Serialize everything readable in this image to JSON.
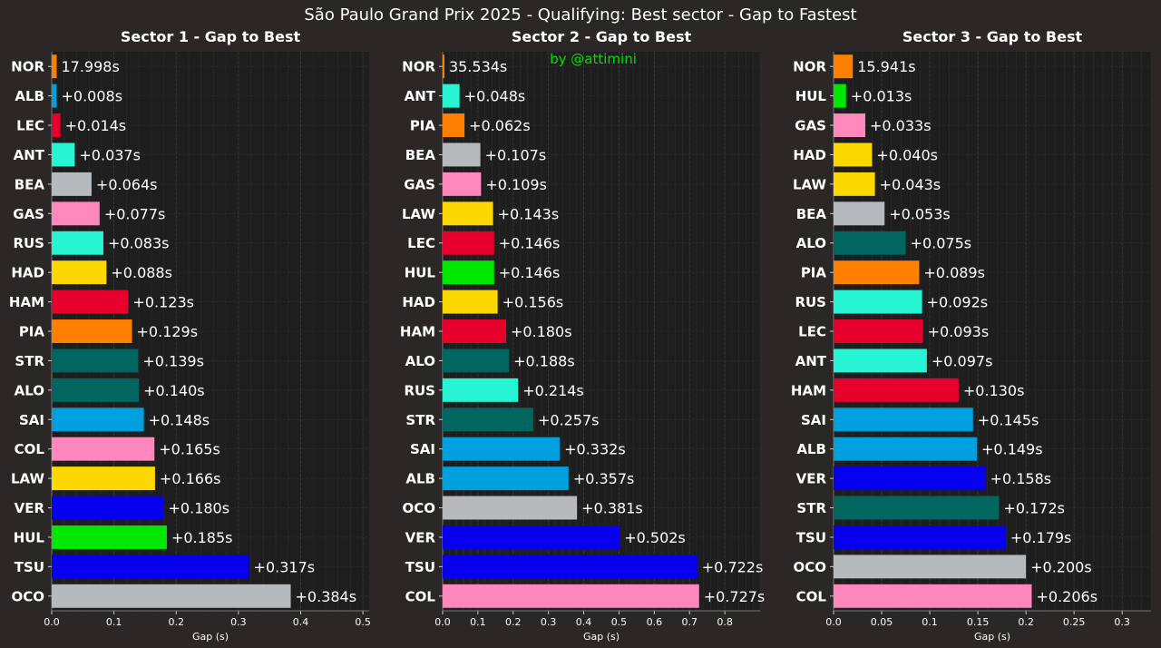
{
  "chart_data": {
    "type": "bar",
    "title": "São Paulo Grand Prix 2025 - Qualifying: Best sector - Gap to Fastest",
    "watermark": "by @attimini",
    "xlabel": "Gap (s)",
    "colors": {
      "background": "#2a2726",
      "plot_background": "#1e1e1e",
      "grid": "#3a3a3a",
      "text": "#ffffff",
      "watermark": "#00e000"
    },
    "team_colors": {
      "McLaren": "#ff8000",
      "Williams": "#00a0de",
      "Ferrari": "#e8002d",
      "Mercedes": "#27f4d2",
      "Haas": "#b6babd",
      "Alpine": "#ff87bc",
      "RacingBulls": "#fcd700",
      "AstonMartin": "#00665f",
      "RedBull": "#0600ef",
      "Sauber": "#00e701"
    },
    "panels": [
      {
        "title": "Sector 1 - Gap to Best",
        "xlim": [
          0,
          0.51
        ],
        "xticks": [
          0,
          0.1,
          0.2,
          0.3,
          0.4,
          0.5
        ],
        "tick_labels": [
          "0.0",
          "0.1",
          "0.2",
          "0.3",
          "0.4",
          "0.5"
        ],
        "bars": [
          {
            "driver": "NOR",
            "value": 0.008,
            "label": "17.998s",
            "team": "McLaren"
          },
          {
            "driver": "ALB",
            "value": 0.008,
            "label": "+0.008s",
            "team": "Williams"
          },
          {
            "driver": "LEC",
            "value": 0.014,
            "label": "+0.014s",
            "team": "Ferrari"
          },
          {
            "driver": "ANT",
            "value": 0.037,
            "label": "+0.037s",
            "team": "Mercedes"
          },
          {
            "driver": "BEA",
            "value": 0.064,
            "label": "+0.064s",
            "team": "Haas"
          },
          {
            "driver": "GAS",
            "value": 0.077,
            "label": "+0.077s",
            "team": "Alpine"
          },
          {
            "driver": "RUS",
            "value": 0.083,
            "label": "+0.083s",
            "team": "Mercedes"
          },
          {
            "driver": "HAD",
            "value": 0.088,
            "label": "+0.088s",
            "team": "RacingBulls"
          },
          {
            "driver": "HAM",
            "value": 0.123,
            "label": "+0.123s",
            "team": "Ferrari"
          },
          {
            "driver": "PIA",
            "value": 0.129,
            "label": "+0.129s",
            "team": "McLaren"
          },
          {
            "driver": "STR",
            "value": 0.139,
            "label": "+0.139s",
            "team": "AstonMartin"
          },
          {
            "driver": "ALO",
            "value": 0.14,
            "label": "+0.140s",
            "team": "AstonMartin"
          },
          {
            "driver": "SAI",
            "value": 0.148,
            "label": "+0.148s",
            "team": "Williams"
          },
          {
            "driver": "COL",
            "value": 0.165,
            "label": "+0.165s",
            "team": "Alpine"
          },
          {
            "driver": "LAW",
            "value": 0.166,
            "label": "+0.166s",
            "team": "RacingBulls"
          },
          {
            "driver": "VER",
            "value": 0.18,
            "label": "+0.180s",
            "team": "RedBull"
          },
          {
            "driver": "HUL",
            "value": 0.185,
            "label": "+0.185s",
            "team": "Sauber"
          },
          {
            "driver": "TSU",
            "value": 0.317,
            "label": "+0.317s",
            "team": "RedBull"
          },
          {
            "driver": "OCO",
            "value": 0.384,
            "label": "+0.384s",
            "team": "Haas"
          }
        ]
      },
      {
        "title": "Sector 2 - Gap to Best",
        "xlim": [
          0,
          0.9
        ],
        "xticks": [
          0,
          0.1,
          0.2,
          0.3,
          0.4,
          0.5,
          0.6,
          0.7,
          0.8
        ],
        "tick_labels": [
          "0.0",
          "0.1",
          "0.2",
          "0.3",
          "0.4",
          "0.5",
          "0.6",
          "0.7",
          "0.8"
        ],
        "bars": [
          {
            "driver": "NOR",
            "value": 0.005,
            "label": "35.534s",
            "team": "McLaren"
          },
          {
            "driver": "ANT",
            "value": 0.048,
            "label": "+0.048s",
            "team": "Mercedes"
          },
          {
            "driver": "PIA",
            "value": 0.062,
            "label": "+0.062s",
            "team": "McLaren"
          },
          {
            "driver": "BEA",
            "value": 0.107,
            "label": "+0.107s",
            "team": "Haas"
          },
          {
            "driver": "GAS",
            "value": 0.109,
            "label": "+0.109s",
            "team": "Alpine"
          },
          {
            "driver": "LAW",
            "value": 0.143,
            "label": "+0.143s",
            "team": "RacingBulls"
          },
          {
            "driver": "LEC",
            "value": 0.146,
            "label": "+0.146s",
            "team": "Ferrari"
          },
          {
            "driver": "HUL",
            "value": 0.146,
            "label": "+0.146s",
            "team": "Sauber"
          },
          {
            "driver": "HAD",
            "value": 0.156,
            "label": "+0.156s",
            "team": "RacingBulls"
          },
          {
            "driver": "HAM",
            "value": 0.18,
            "label": "+0.180s",
            "team": "Ferrari"
          },
          {
            "driver": "ALO",
            "value": 0.188,
            "label": "+0.188s",
            "team": "AstonMartin"
          },
          {
            "driver": "RUS",
            "value": 0.214,
            "label": "+0.214s",
            "team": "Mercedes"
          },
          {
            "driver": "STR",
            "value": 0.257,
            "label": "+0.257s",
            "team": "AstonMartin"
          },
          {
            "driver": "SAI",
            "value": 0.332,
            "label": "+0.332s",
            "team": "Williams"
          },
          {
            "driver": "ALB",
            "value": 0.357,
            "label": "+0.357s",
            "team": "Williams"
          },
          {
            "driver": "OCO",
            "value": 0.381,
            "label": "+0.381s",
            "team": "Haas"
          },
          {
            "driver": "VER",
            "value": 0.502,
            "label": "+0.502s",
            "team": "RedBull"
          },
          {
            "driver": "TSU",
            "value": 0.722,
            "label": "+0.722s",
            "team": "RedBull"
          },
          {
            "driver": "COL",
            "value": 0.727,
            "label": "+0.727s",
            "team": "Alpine"
          }
        ]
      },
      {
        "title": "Sector 3 - Gap to Best",
        "xlim": [
          0,
          0.33
        ],
        "xticks": [
          0,
          0.05,
          0.1,
          0.15,
          0.2,
          0.25,
          0.3
        ],
        "tick_labels": [
          "0.0",
          "0.05",
          "0.1",
          "0.15",
          "0.2",
          "0.25",
          "0.3"
        ],
        "bars": [
          {
            "driver": "NOR",
            "value": 0.02,
            "label": "15.941s",
            "team": "McLaren"
          },
          {
            "driver": "HUL",
            "value": 0.013,
            "label": "+0.013s",
            "team": "Sauber"
          },
          {
            "driver": "GAS",
            "value": 0.033,
            "label": "+0.033s",
            "team": "Alpine"
          },
          {
            "driver": "HAD",
            "value": 0.04,
            "label": "+0.040s",
            "team": "RacingBulls"
          },
          {
            "driver": "LAW",
            "value": 0.043,
            "label": "+0.043s",
            "team": "RacingBulls"
          },
          {
            "driver": "BEA",
            "value": 0.053,
            "label": "+0.053s",
            "team": "Haas"
          },
          {
            "driver": "ALO",
            "value": 0.075,
            "label": "+0.075s",
            "team": "AstonMartin"
          },
          {
            "driver": "PIA",
            "value": 0.089,
            "label": "+0.089s",
            "team": "McLaren"
          },
          {
            "driver": "RUS",
            "value": 0.092,
            "label": "+0.092s",
            "team": "Mercedes"
          },
          {
            "driver": "LEC",
            "value": 0.093,
            "label": "+0.093s",
            "team": "Ferrari"
          },
          {
            "driver": "ANT",
            "value": 0.097,
            "label": "+0.097s",
            "team": "Mercedes"
          },
          {
            "driver": "HAM",
            "value": 0.13,
            "label": "+0.130s",
            "team": "Ferrari"
          },
          {
            "driver": "SAI",
            "value": 0.145,
            "label": "+0.145s",
            "team": "Williams"
          },
          {
            "driver": "ALB",
            "value": 0.149,
            "label": "+0.149s",
            "team": "Williams"
          },
          {
            "driver": "VER",
            "value": 0.158,
            "label": "+0.158s",
            "team": "RedBull"
          },
          {
            "driver": "STR",
            "value": 0.172,
            "label": "+0.172s",
            "team": "AstonMartin"
          },
          {
            "driver": "TSU",
            "value": 0.179,
            "label": "+0.179s",
            "team": "RedBull"
          },
          {
            "driver": "OCO",
            "value": 0.2,
            "label": "+0.200s",
            "team": "Haas"
          },
          {
            "driver": "COL",
            "value": 0.206,
            "label": "+0.206s",
            "team": "Alpine"
          }
        ]
      }
    ]
  }
}
